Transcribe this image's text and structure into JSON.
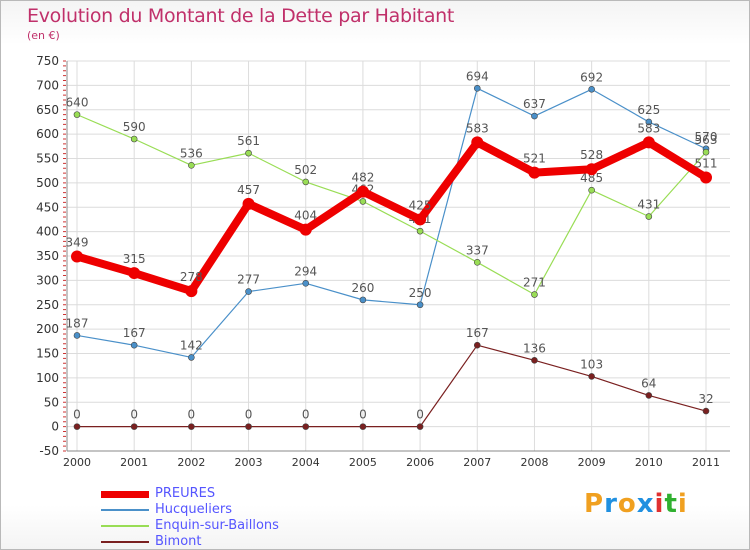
{
  "title": "Evolution du Montant de la Dette par Habitant",
  "unit": "(en €)",
  "brand": {
    "letters": [
      "P",
      "r",
      "o",
      "x",
      "i",
      "t",
      "i"
    ],
    "colors": [
      "#f0a020",
      "#2090e0",
      "#f0a020",
      "#2090e0",
      "#e03030",
      "#30b030",
      "#f0a020"
    ]
  },
  "chart_data": {
    "type": "line",
    "title": "Evolution du Montant de la Dette par Habitant",
    "ylabel": "(en €)",
    "xlabel": "",
    "x": [
      "2000",
      "2001",
      "2002",
      "2003",
      "2004",
      "2005",
      "2006",
      "2007",
      "2008",
      "2009",
      "2010",
      "2011"
    ],
    "ylim": [
      -50,
      750
    ],
    "yticks": [
      "-50",
      "0",
      "50",
      "100",
      "150",
      "200",
      "250",
      "300",
      "350",
      "400",
      "450",
      "500",
      "550",
      "600",
      "650",
      "700",
      "750"
    ],
    "grid": true,
    "legend_position": "bottom-left",
    "series": [
      {
        "name": "PREURES",
        "color": "#ee0000",
        "values": [
          349,
          315,
          278,
          457,
          404,
          482,
          425,
          583,
          521,
          528,
          583,
          511
        ]
      },
      {
        "name": "Hucqueliers",
        "color": "#4a90c9",
        "values": [
          187,
          167,
          142,
          277,
          294,
          260,
          250,
          694,
          637,
          692,
          625,
          570
        ]
      },
      {
        "name": "Enquin-sur-Baillons",
        "color": "#99dd55",
        "values": [
          640,
          590,
          536,
          561,
          502,
          462,
          401,
          337,
          271,
          485,
          431,
          563
        ]
      },
      {
        "name": "Bimont",
        "color": "#7a2020",
        "values": [
          0,
          0,
          0,
          0,
          0,
          0,
          0,
          167,
          136,
          103,
          64,
          32
        ]
      }
    ]
  }
}
